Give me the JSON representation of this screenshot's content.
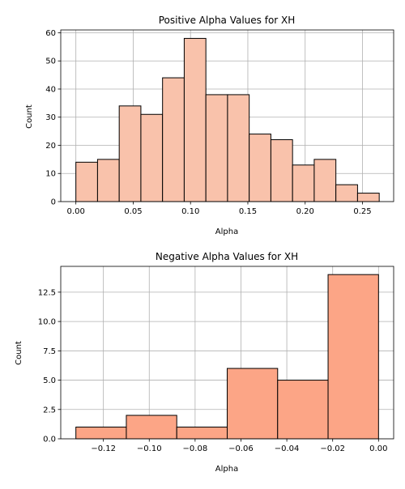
{
  "chart_data": [
    {
      "type": "bar",
      "title": "Positive Alpha Values for XH",
      "xlabel": "Alpha",
      "ylabel": "Count",
      "color": "#f9c2ab",
      "edge_color": "#000000",
      "grid": true,
      "xlim": [
        -0.0132,
        0.2772
      ],
      "ylim": [
        0,
        61
      ],
      "xticks": [
        0.0,
        0.05,
        0.1,
        0.15,
        0.2,
        0.25
      ],
      "xtick_labels": [
        "0.00",
        "0.05",
        "0.10",
        "0.15",
        "0.20",
        "0.25"
      ],
      "yticks": [
        0,
        10,
        20,
        30,
        40,
        50,
        60
      ],
      "ytick_labels": [
        "0",
        "10",
        "20",
        "30",
        "40",
        "50",
        "60"
      ],
      "bin_edges": [
        0.0,
        0.0189,
        0.0378,
        0.0567,
        0.0756,
        0.0945,
        0.1134,
        0.1323,
        0.1512,
        0.1701,
        0.189,
        0.2079,
        0.2268,
        0.2457,
        0.2646
      ],
      "values": [
        14,
        15,
        34,
        31,
        44,
        58,
        38,
        38,
        24,
        22,
        13,
        15,
        6,
        3
      ]
    },
    {
      "type": "bar",
      "title": "Negative Alpha Values for XH",
      "xlabel": "Alpha",
      "ylabel": "Count",
      "color": "#fca586",
      "edge_color": "#000000",
      "grid": true,
      "xlim": [
        -0.1386,
        0.0066
      ],
      "ylim": [
        0,
        14.7
      ],
      "xticks": [
        -0.12,
        -0.1,
        -0.08,
        -0.06,
        -0.04,
        -0.02,
        0.0
      ],
      "xtick_labels": [
        "−0.12",
        "−0.10",
        "−0.08",
        "−0.06",
        "−0.04",
        "−0.02",
        "0.00"
      ],
      "yticks": [
        0,
        2.5,
        5,
        7.5,
        10,
        12.5
      ],
      "ytick_labels": [
        "0.0",
        "2.5",
        "5.0",
        "7.5",
        "10.0",
        "12.5"
      ],
      "bin_edges": [
        -0.132,
        -0.11,
        -0.088,
        -0.066,
        -0.044,
        -0.022,
        0.0
      ],
      "values": [
        1,
        2,
        1,
        6,
        5,
        14
      ]
    }
  ]
}
